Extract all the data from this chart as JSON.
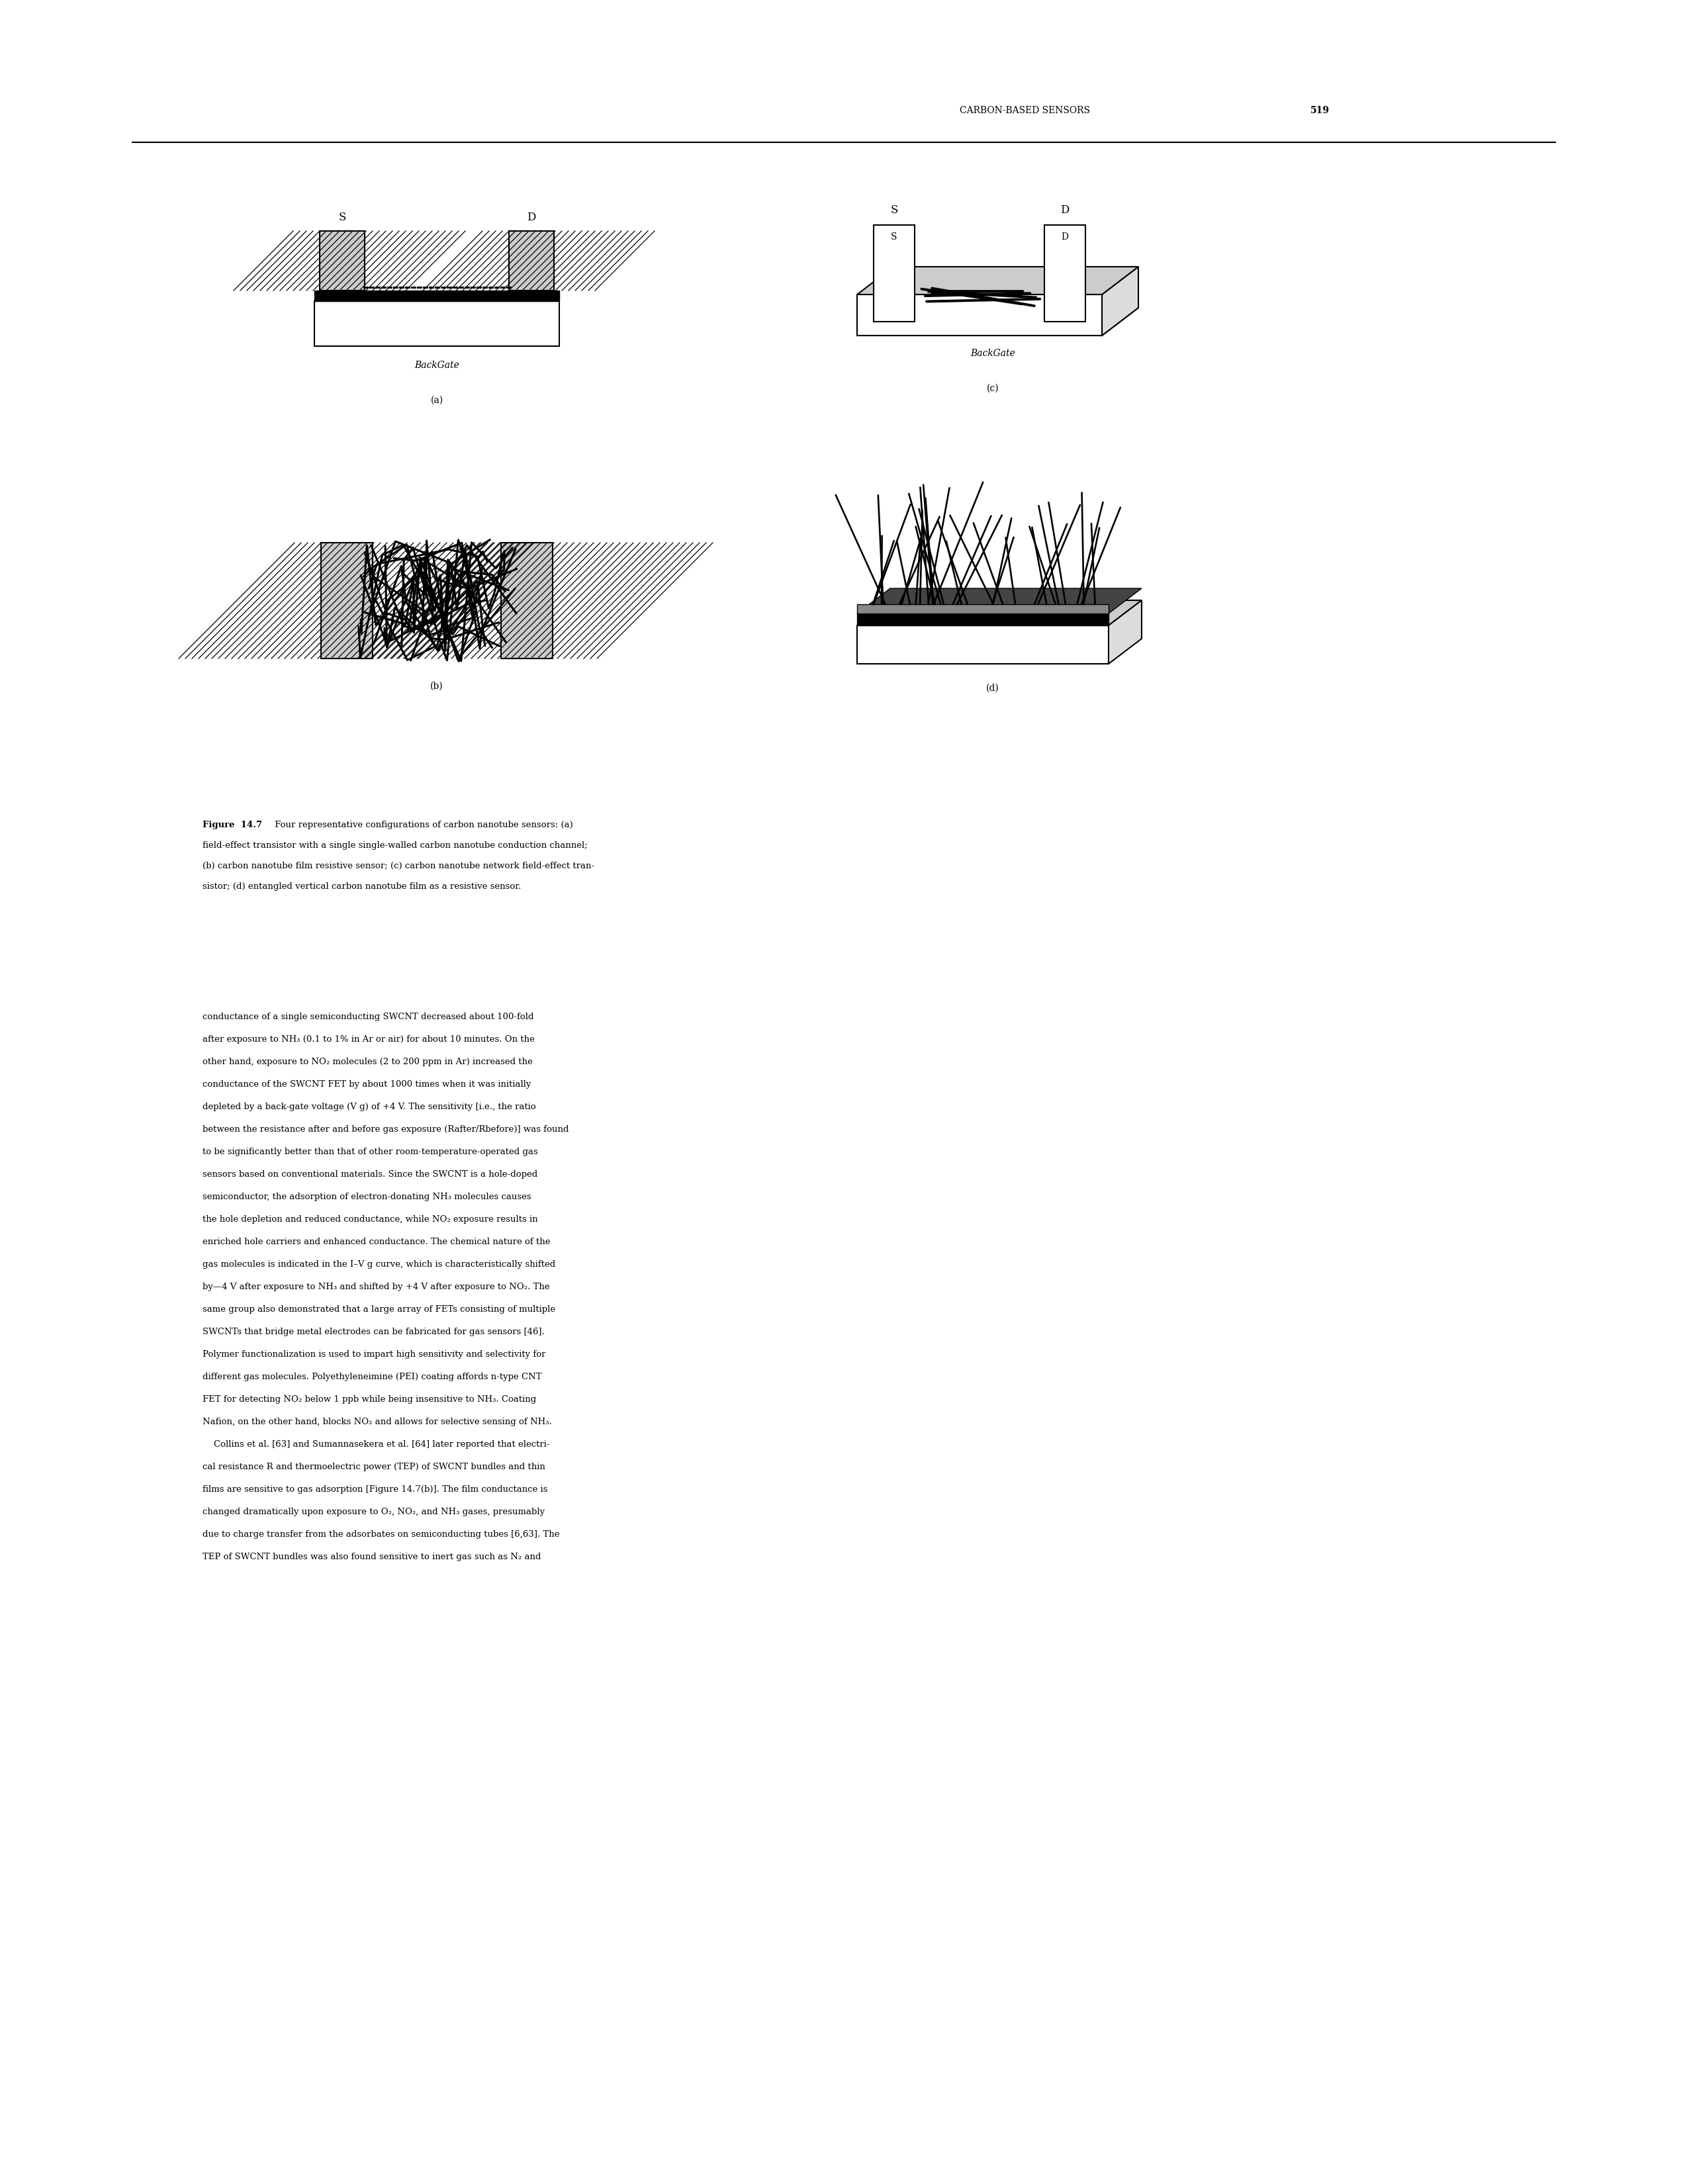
{
  "page_header": "CARBON-BASED SENSORS",
  "page_number": "519",
  "figure_caption_bold": "Figure  14.7",
  "cap_lines": [
    " Four representative configurations of carbon nanotube sensors: (a)",
    "field-effect transistor with a single single-walled carbon nanotube conduction channel;",
    "(b) carbon nanotube film resistive sensor; (c) carbon nanotube network field-effect tran-",
    "sistor; (d) entangled vertical carbon nanotube film as a resistive sensor."
  ],
  "body_text_lines": [
    "conductance of a single semiconducting SWCNT decreased about 100-fold",
    "after exposure to NH₃ (0.1 to 1% in Ar or air) for about 10 minutes. On the",
    "other hand, exposure to NO₂ molecules (2 to 200 ppm in Ar) increased the",
    "conductance of the SWCNT FET by about 1000 times when it was initially",
    "depleted by a back-gate voltage (V g) of +4 V. The sensitivity [i.e., the ratio",
    "between the resistance after and before gas exposure (Rafter/Rbefore)] was found",
    "to be significantly better than that of other room-temperature-operated gas",
    "sensors based on conventional materials. Since the SWCNT is a hole-doped",
    "semiconductor, the adsorption of electron-donating NH₃ molecules causes",
    "the hole depletion and reduced conductance, while NO₂ exposure results in",
    "enriched hole carriers and enhanced conductance. The chemical nature of the",
    "gas molecules is indicated in the I–V g curve, which is characteristically shifted",
    "by—4 V after exposure to NH₃ and shifted by +4 V after exposure to NO₂. The",
    "same group also demonstrated that a large array of FETs consisting of multiple",
    "SWCNTs that bridge metal electrodes can be fabricated for gas sensors [46].",
    "Polymer functionalization is used to impart high sensitivity and selectivity for",
    "different gas molecules. Polyethyleneimine (PEI) coating affords n-type CNT",
    "FET for detecting NO₂ below 1 ppb while being insensitive to NH₃. Coating",
    "Nafion, on the other hand, blocks NO₂ and allows for selective sensing of NH₃.",
    "    Collins et al. [63] and Sumannasekera et al. [64] later reported that electri-",
    "cal resistance R and thermoelectric power (TEP) of SWCNT bundles and thin",
    "films are sensitive to gas adsorption [Figure 14.7(b)]. The film conductance is",
    "changed dramatically upon exposure to O₂, NO₂, and NH₃ gases, presumably",
    "due to charge transfer from the adsorbates on semiconducting tubes [6,63]. The",
    "TEP of SWCNT bundles was also found sensitive to inert gas such as N₂ and"
  ],
  "bg_color": "#ffffff",
  "text_color": "#000000",
  "font_size_body": 9.5,
  "font_size_caption": 9.5,
  "font_size_header": 10.0
}
